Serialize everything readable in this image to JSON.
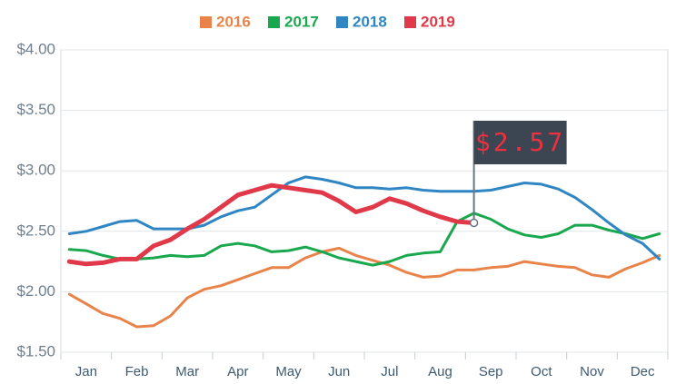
{
  "chart_data": {
    "type": "line",
    "categories": [
      null,
      "Jan",
      null,
      null,
      "Feb",
      null,
      null,
      "Mar",
      null,
      null,
      "Apr",
      null,
      null,
      "May",
      null,
      null,
      "Jun",
      null,
      null,
      "Jul",
      null,
      null,
      "Aug",
      null,
      null,
      "Sep",
      null,
      null,
      "Oct",
      null,
      null,
      "Nov",
      null,
      null,
      "Dec",
      null
    ],
    "series": [
      {
        "name": "2016",
        "color": "#e8844a",
        "values": [
          1.98,
          1.9,
          1.82,
          1.78,
          1.71,
          1.72,
          1.8,
          1.95,
          2.02,
          2.05,
          2.1,
          2.15,
          2.2,
          2.2,
          2.28,
          2.33,
          2.36,
          2.3,
          2.26,
          2.22,
          2.16,
          2.12,
          2.13,
          2.18,
          2.18,
          2.2,
          2.21,
          2.25,
          2.23,
          2.21,
          2.2,
          2.14,
          2.12,
          2.19,
          2.24,
          2.3
        ]
      },
      {
        "name": "2017",
        "color": "#1aa84e",
        "values": [
          2.35,
          2.34,
          2.3,
          2.27,
          2.27,
          2.28,
          2.3,
          2.29,
          2.3,
          2.38,
          2.4,
          2.38,
          2.33,
          2.34,
          2.37,
          2.33,
          2.28,
          2.25,
          2.22,
          2.25,
          2.3,
          2.32,
          2.33,
          2.58,
          2.65,
          2.6,
          2.52,
          2.47,
          2.45,
          2.48,
          2.55,
          2.55,
          2.51,
          2.48,
          2.44,
          2.48
        ]
      },
      {
        "name": "2018",
        "color": "#2f86c3",
        "values": [
          2.48,
          2.5,
          2.54,
          2.58,
          2.59,
          2.52,
          2.52,
          2.52,
          2.55,
          2.62,
          2.67,
          2.7,
          2.8,
          2.9,
          2.95,
          2.93,
          2.9,
          2.86,
          2.86,
          2.85,
          2.86,
          2.84,
          2.83,
          2.83,
          2.83,
          2.84,
          2.87,
          2.9,
          2.89,
          2.85,
          2.78,
          2.68,
          2.57,
          2.47,
          2.4,
          2.27
        ]
      },
      {
        "name": "2019",
        "color": "#e03a4a",
        "values": [
          2.25,
          2.23,
          2.24,
          2.27,
          2.27,
          2.38,
          2.43,
          2.52,
          2.6,
          2.7,
          2.8,
          2.84,
          2.88,
          2.86,
          2.84,
          2.82,
          2.75,
          2.66,
          2.7,
          2.77,
          2.73,
          2.67,
          2.62,
          2.58,
          2.57,
          null,
          null,
          null,
          null,
          null,
          null,
          null,
          null,
          null,
          null,
          null
        ]
      }
    ],
    "annotation": "$2.57",
    "ylim": [
      1.5,
      4.0
    ],
    "yticks": [
      {
        "value": 1.5,
        "label": "$1.50"
      },
      {
        "value": 2.0,
        "label": "$2.00"
      },
      {
        "value": 2.5,
        "label": "$2.50"
      },
      {
        "value": 3.0,
        "label": "$3.00"
      },
      {
        "value": 3.5,
        "label": "$3.50"
      },
      {
        "value": 4.0,
        "label": "$4.00"
      }
    ],
    "grid": true,
    "legend": "top"
  }
}
